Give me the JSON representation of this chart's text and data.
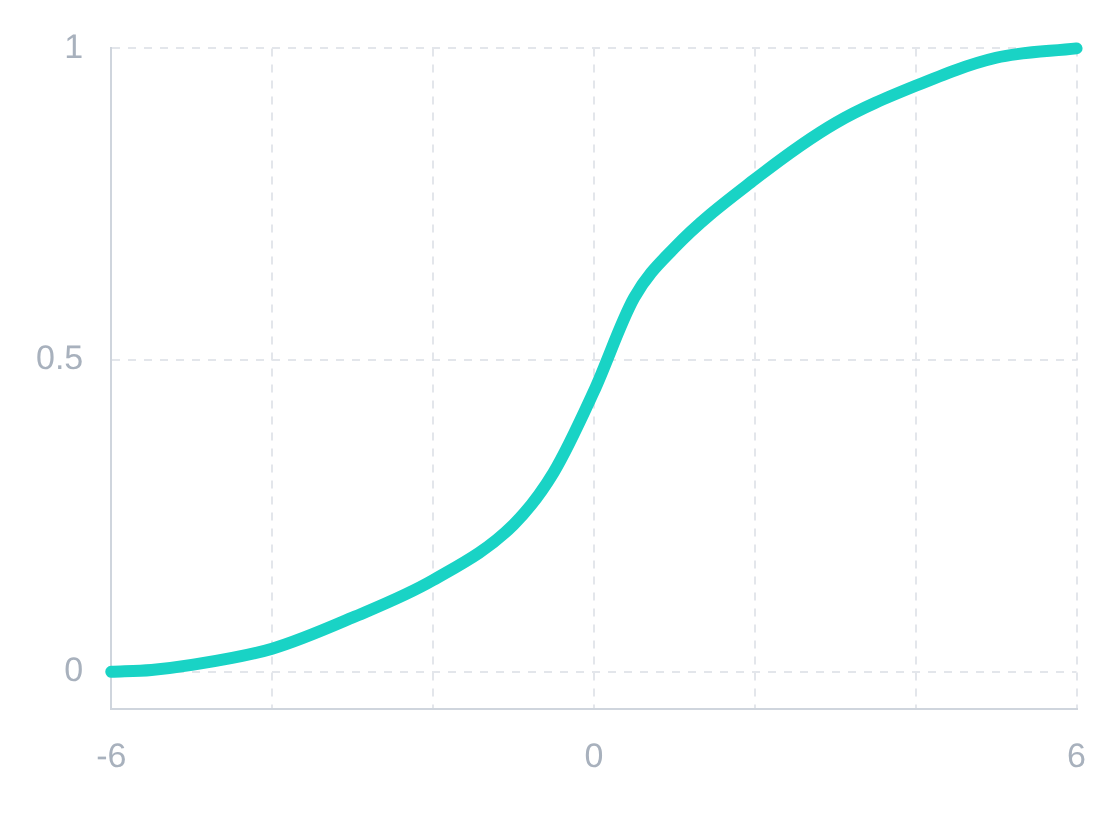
{
  "chart_data": {
    "type": "line",
    "x": [
      -6,
      -5.5,
      -5,
      -4,
      -3,
      -2,
      -1,
      -0.5,
      0,
      0.5,
      1,
      2,
      3,
      4,
      5,
      6
    ],
    "series": [
      {
        "color": "#19d3c5",
        "values": [
          0,
          0.003,
          0.011,
          0.037,
          0.087,
          0.147,
          0.236,
          0.32,
          0.45,
          0.6,
          0.68,
          0.79,
          0.88,
          0.94,
          0.985,
          1
        ]
      }
    ],
    "xlim": [
      -6,
      6
    ],
    "xticks": [
      -6,
      {
        "value": -4,
        "label": null
      },
      {
        "value": -2,
        "label": null
      },
      0,
      {
        "value": 2,
        "label": null
      },
      {
        "value": 4,
        "label": null
      },
      6
    ],
    "ylim": [
      -0.06,
      1
    ],
    "yticks": [
      0,
      0.5,
      1
    ],
    "grid": true,
    "legend": false,
    "marker": "none",
    "line_style": "solid"
  }
}
